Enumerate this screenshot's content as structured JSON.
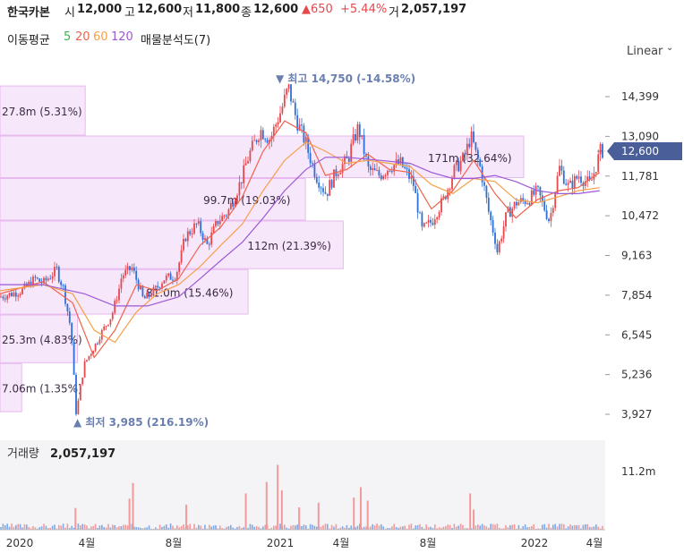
{
  "header": {
    "name": "한국카본",
    "open_label": "시",
    "open": "12,000",
    "high_label": "고",
    "high": "12,600",
    "low_label": "저",
    "low": "11,800",
    "close_label": "종",
    "close": "12,600",
    "change": "▲650",
    "change_pct": "+5.44%",
    "volume_label": "거",
    "volume": "2,057,197"
  },
  "ma_legend": {
    "title": "이동평균",
    "periods": [
      "5",
      "20",
      "60",
      "120"
    ],
    "colors": [
      "#3ab54a",
      "#f0624d",
      "#f5a04a",
      "#9b59d6"
    ],
    "profile_label": "매물분석도(7)"
  },
  "scale_mode": "Linear",
  "scale_chevron": "chevron-down-icon",
  "colors": {
    "up": "#e5484d",
    "down": "#2f6fd6",
    "price_tag": "#4a5f9a",
    "profile": "#f1d4f5"
  },
  "chart_data": {
    "type": "candlestick",
    "title": "한국카본",
    "x_range": [
      "2019-12",
      "2022-04"
    ],
    "x_ticks": [
      "2020",
      "4월",
      "8월",
      "2021",
      "4월",
      "8월",
      "2022",
      "4월"
    ],
    "y_range": [
      3600,
      15000
    ],
    "y_ticks": [
      "14,399",
      "13,090",
      "11,781",
      "10,472",
      "9,163",
      "7,854",
      "6,545",
      "5,236",
      "3,927"
    ],
    "last_price_tag": "12,600",
    "high_annotation": "▼ 최고 14,750 (-14.58%)",
    "low_annotation": "▲ 최저 3,985 (216.19%)",
    "price_series": [
      [
        "2019-12-01",
        7800
      ],
      [
        "2020-01-01",
        8000
      ],
      [
        "2020-01-20",
        8400
      ],
      [
        "2020-02-01",
        8250
      ],
      [
        "2020-02-20",
        8700
      ],
      [
        "2020-03-01",
        8100
      ],
      [
        "2020-03-12",
        6700
      ],
      [
        "2020-03-19",
        3985
      ],
      [
        "2020-04-01",
        5600
      ],
      [
        "2020-04-20",
        6400
      ],
      [
        "2020-05-10",
        7200
      ],
      [
        "2020-05-25",
        8500
      ],
      [
        "2020-06-08",
        8750
      ],
      [
        "2020-06-25",
        7700
      ],
      [
        "2020-07-10",
        8000
      ],
      [
        "2020-07-25",
        8400
      ],
      [
        "2020-08-10",
        8500
      ],
      [
        "2020-08-25",
        9800
      ],
      [
        "2020-09-10",
        10200
      ],
      [
        "2020-09-25",
        9500
      ],
      [
        "2020-10-10",
        10300
      ],
      [
        "2020-10-25",
        10600
      ],
      [
        "2020-11-10",
        11500
      ],
      [
        "2020-11-25",
        12500
      ],
      [
        "2020-12-10",
        13300
      ],
      [
        "2020-12-25",
        13000
      ],
      [
        "2021-01-10",
        14000
      ],
      [
        "2021-01-20",
        14750
      ],
      [
        "2021-02-01",
        13600
      ],
      [
        "2021-02-15",
        12800
      ],
      [
        "2021-03-01",
        11800
      ],
      [
        "2021-03-15",
        11200
      ],
      [
        "2021-04-01",
        12000
      ],
      [
        "2021-04-15",
        12300
      ],
      [
        "2021-05-01",
        13400
      ],
      [
        "2021-05-15",
        12000
      ],
      [
        "2021-06-01",
        11800
      ],
      [
        "2021-06-15",
        12100
      ],
      [
        "2021-07-01",
        12200
      ],
      [
        "2021-07-20",
        11500
      ],
      [
        "2021-08-01",
        10000
      ],
      [
        "2021-08-15",
        10300
      ],
      [
        "2021-09-01",
        11000
      ],
      [
        "2021-09-15",
        11900
      ],
      [
        "2021-10-01",
        12400
      ],
      [
        "2021-10-10",
        13100
      ],
      [
        "2021-10-25",
        12000
      ],
      [
        "2021-11-05",
        10600
      ],
      [
        "2021-11-18",
        9300
      ],
      [
        "2021-12-01",
        10500
      ],
      [
        "2021-12-15",
        10900
      ],
      [
        "2022-01-01",
        11000
      ],
      [
        "2022-01-15",
        11300
      ],
      [
        "2022-02-01",
        10300
      ],
      [
        "2022-02-15",
        12100
      ],
      [
        "2022-03-01",
        11400
      ],
      [
        "2022-03-15",
        11800
      ],
      [
        "2022-04-01",
        11500
      ],
      [
        "2022-04-15",
        12600
      ]
    ],
    "moving_averages": {
      "ma20": [
        [
          "2019-12-01",
          7900
        ],
        [
          "2020-02-01",
          8300
        ],
        [
          "2020-03-15",
          7600
        ],
        [
          "2020-04-15",
          5800
        ],
        [
          "2020-05-15",
          6700
        ],
        [
          "2020-06-15",
          8200
        ],
        [
          "2020-07-15",
          8000
        ],
        [
          "2020-08-15",
          8400
        ],
        [
          "2020-09-15",
          9500
        ],
        [
          "2020-10-15",
          10100
        ],
        [
          "2020-11-15",
          11100
        ],
        [
          "2020-12-15",
          12600
        ],
        [
          "2021-01-15",
          13600
        ],
        [
          "2021-02-15",
          13200
        ],
        [
          "2021-03-15",
          11800
        ],
        [
          "2021-04-15",
          12000
        ],
        [
          "2021-05-15",
          12500
        ],
        [
          "2021-06-15",
          12000
        ],
        [
          "2021-07-15",
          11900
        ],
        [
          "2021-08-15",
          10700
        ],
        [
          "2021-09-15",
          11300
        ],
        [
          "2021-10-15",
          12300
        ],
        [
          "2021-11-15",
          11200
        ],
        [
          "2021-12-15",
          10400
        ],
        [
          "2022-01-15",
          11000
        ],
        [
          "2022-02-15",
          11300
        ],
        [
          "2022-03-15",
          11400
        ],
        [
          "2022-04-15",
          11900
        ]
      ],
      "ma60": [
        [
          "2019-12-01",
          8000
        ],
        [
          "2020-02-01",
          8200
        ],
        [
          "2020-03-15",
          7900
        ],
        [
          "2020-04-15",
          6700
        ],
        [
          "2020-05-15",
          6300
        ],
        [
          "2020-06-15",
          7300
        ],
        [
          "2020-07-15",
          7900
        ],
        [
          "2020-08-15",
          8200
        ],
        [
          "2020-09-15",
          8800
        ],
        [
          "2020-10-15",
          9500
        ],
        [
          "2020-11-15",
          10200
        ],
        [
          "2020-12-15",
          11300
        ],
        [
          "2021-01-15",
          12300
        ],
        [
          "2021-02-15",
          12900
        ],
        [
          "2021-03-15",
          12600
        ],
        [
          "2021-04-15",
          12200
        ],
        [
          "2021-05-15",
          12300
        ],
        [
          "2021-06-15",
          12200
        ],
        [
          "2021-07-15",
          12100
        ],
        [
          "2021-08-15",
          11500
        ],
        [
          "2021-09-15",
          11200
        ],
        [
          "2021-10-15",
          11700
        ],
        [
          "2021-11-15",
          11600
        ],
        [
          "2021-12-15",
          11000
        ],
        [
          "2022-01-15",
          10900
        ],
        [
          "2022-02-15",
          11100
        ],
        [
          "2022-03-15",
          11300
        ],
        [
          "2022-04-15",
          11400
        ]
      ],
      "ma120": [
        [
          "2019-12-01",
          8200
        ],
        [
          "2020-02-01",
          8200
        ],
        [
          "2020-04-01",
          7900
        ],
        [
          "2020-05-15",
          7500
        ],
        [
          "2020-07-01",
          7500
        ],
        [
          "2020-08-15",
          7800
        ],
        [
          "2020-09-15",
          8400
        ],
        [
          "2020-10-15",
          9000
        ],
        [
          "2020-11-15",
          9600
        ],
        [
          "2020-12-15",
          10400
        ],
        [
          "2021-01-15",
          11300
        ],
        [
          "2021-02-15",
          12000
        ],
        [
          "2021-03-15",
          12400
        ],
        [
          "2021-04-15",
          12400
        ],
        [
          "2021-06-01",
          12300
        ],
        [
          "2021-07-15",
          12200
        ],
        [
          "2021-08-15",
          11900
        ],
        [
          "2021-09-15",
          11700
        ],
        [
          "2021-10-15",
          11700
        ],
        [
          "2021-11-15",
          11800
        ],
        [
          "2021-12-15",
          11600
        ],
        [
          "2022-01-15",
          11300
        ],
        [
          "2022-02-15",
          11200
        ],
        [
          "2022-03-15",
          11200
        ],
        [
          "2022-04-15",
          11300
        ]
      ]
    },
    "volume_profile": [
      {
        "price_low": 13100,
        "price_high": 14750,
        "label": "27.8m (5.31%)"
      },
      {
        "price_low": 11700,
        "price_high": 13100,
        "label": "171m (32.64%)"
      },
      {
        "price_low": 10300,
        "price_high": 11700,
        "label": "99.7m (19.03%)"
      },
      {
        "price_low": 8700,
        "price_high": 10300,
        "label": "112m (21.39%)"
      },
      {
        "price_low": 7200,
        "price_high": 8700,
        "label": "81.0m (15.46%)"
      },
      {
        "price_low": 5600,
        "price_high": 7200,
        "label": "25.3m (4.83%)"
      },
      {
        "price_low": 3985,
        "price_high": 5600,
        "label": "7.06m (1.35%)"
      }
    ],
    "volume_panel": {
      "title": "거래량",
      "value": "2,057,197",
      "axis_tick": "11.2m",
      "bars": [
        [
          "2020-03-19",
          4.2
        ],
        [
          "2020-06-05",
          6.0
        ],
        [
          "2020-06-10",
          9.0
        ],
        [
          "2020-08-26",
          4.8
        ],
        [
          "2020-11-20",
          7.0
        ],
        [
          "2020-12-20",
          9.2
        ],
        [
          "2021-01-05",
          12.5
        ],
        [
          "2021-01-11",
          7.6
        ],
        [
          "2021-02-05",
          4.3
        ],
        [
          "2021-03-05",
          5.2
        ],
        [
          "2021-04-25",
          6.2
        ],
        [
          "2021-05-05",
          8.2
        ],
        [
          "2021-05-15",
          5.6
        ],
        [
          "2021-10-10",
          7.0
        ],
        [
          "2021-10-15",
          3.9
        ]
      ]
    }
  }
}
